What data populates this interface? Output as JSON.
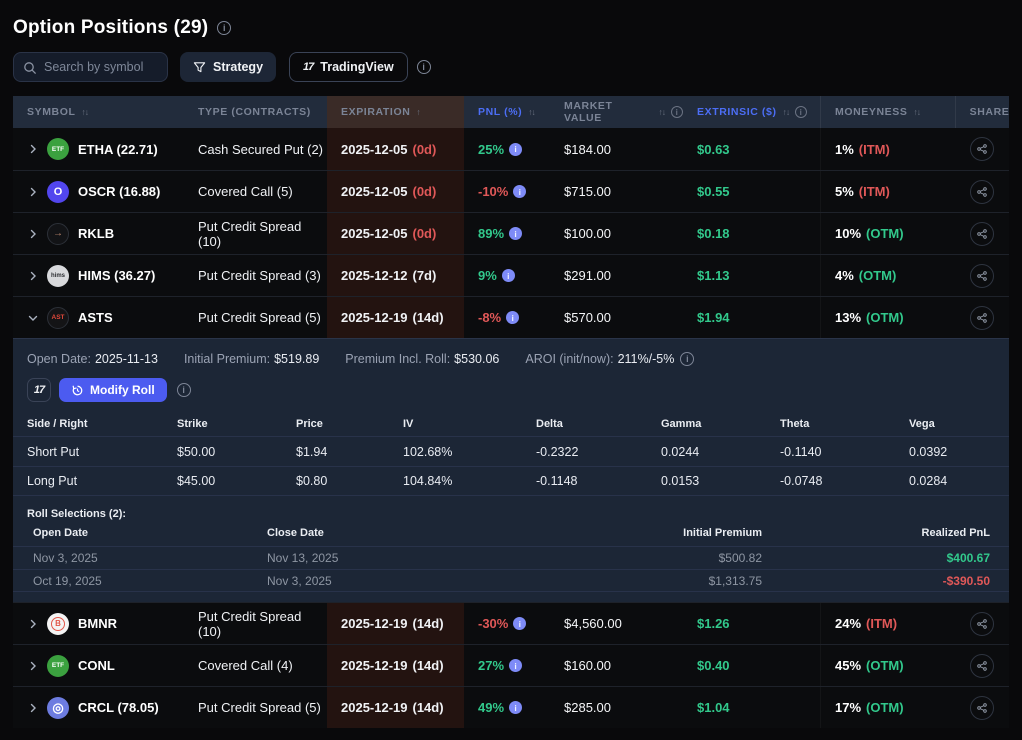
{
  "colors": {
    "green": "#32c98c",
    "red": "#e05858",
    "accent_blue": "#4c6ef5",
    "button_blue": "#4c5bf0",
    "badge_blue": "#7e8bf7",
    "panel_bg": "#1c2636",
    "header_bg": "#222c3c",
    "expiration_tint": "#231310"
  },
  "page": {
    "title": "Option Positions (29)",
    "search_placeholder": "Search by symbol",
    "strategy_button": "Strategy",
    "tradingview_button": "TradingView",
    "tradingview_logo": "17"
  },
  "table": {
    "columns": {
      "symbol": "SYMBOL",
      "type": "TYPE (CONTRACTS)",
      "expiration": "EXPIRATION",
      "pnl": "PNL (%)",
      "market_value": "MARKET VALUE",
      "extrinsic": "EXTRINSIC ($)",
      "moneyness": "MONEYNESS",
      "share": "SHARE"
    },
    "rows": [
      {
        "label": "ETHA (22.71)",
        "icon": {
          "text": "ETF",
          "bg": "#3ba13f",
          "fg": "#ffffff",
          "size": 6.5
        },
        "type": "Cash Secured Put (2)",
        "exp_date": "2025-12-05",
        "exp_days": "(0d)",
        "exp_urgent": true,
        "pnl": "25%",
        "pnl_dir": "pos",
        "pnl_info": false,
        "market_value": "$184.00",
        "extrinsic": "$0.63",
        "moneyness_pct": "1%",
        "moneyness_tag": "(ITM)",
        "moneyness_dir": "itm",
        "expanded": false
      },
      {
        "label": "OSCR (16.88)",
        "icon": {
          "text": "O",
          "bg": "#5246ee",
          "fg": "#ffffff",
          "size": 11
        },
        "type": "Covered Call (5)",
        "exp_date": "2025-12-05",
        "exp_days": "(0d)",
        "exp_urgent": true,
        "pnl": "-10%",
        "pnl_dir": "neg",
        "pnl_info": false,
        "market_value": "$715.00",
        "extrinsic": "$0.55",
        "moneyness_pct": "5%",
        "moneyness_tag": "(ITM)",
        "moneyness_dir": "itm",
        "expanded": false
      },
      {
        "label": "RKLB",
        "icon": {
          "text": "→",
          "bg": "#121316",
          "fg": "#c08a70",
          "size": 10,
          "border": "#2c3038"
        },
        "type": "Put Credit Spread (10)",
        "exp_date": "2025-12-05",
        "exp_days": "(0d)",
        "exp_urgent": true,
        "pnl": "89%",
        "pnl_dir": "pos",
        "pnl_info": false,
        "market_value": "$100.00",
        "extrinsic": "$0.18",
        "moneyness_pct": "10%",
        "moneyness_tag": "(OTM)",
        "moneyness_dir": "otm",
        "expanded": false
      },
      {
        "label": "HIMS (36.27)",
        "icon": {
          "text": "hims",
          "bg": "#d8d9dc",
          "fg": "#2a2c30",
          "size": 6
        },
        "type": "Put Credit Spread (3)",
        "exp_date": "2025-12-12",
        "exp_days": "(7d)",
        "exp_urgent": false,
        "pnl": "9%",
        "pnl_dir": "pos",
        "pnl_info": false,
        "market_value": "$291.00",
        "extrinsic": "$1.13",
        "moneyness_pct": "4%",
        "moneyness_tag": "(OTM)",
        "moneyness_dir": "otm",
        "expanded": false
      },
      {
        "label": "ASTS",
        "icon": {
          "text": "AST",
          "bg": "#141416",
          "fg": "#e0483a",
          "size": 6.5,
          "border": "#2c3038"
        },
        "type": "Put Credit Spread (5)",
        "exp_date": "2025-12-19",
        "exp_days": "(14d)",
        "exp_urgent": false,
        "pnl": "-8%",
        "pnl_dir": "neg",
        "pnl_info": true,
        "market_value": "$570.00",
        "extrinsic": "$1.94",
        "moneyness_pct": "13%",
        "moneyness_tag": "(OTM)",
        "moneyness_dir": "otm",
        "expanded": true
      },
      {
        "label": "BMNR",
        "icon": {
          "text": "B",
          "bg": "#f4f4f4",
          "fg": "#e2574a",
          "ring": true
        },
        "type": "Put Credit Spread (10)",
        "exp_date": "2025-12-19",
        "exp_days": "(14d)",
        "exp_urgent": false,
        "pnl": "-30%",
        "pnl_dir": "neg",
        "pnl_info": true,
        "market_value": "$4,560.00",
        "extrinsic": "$1.26",
        "moneyness_pct": "24%",
        "moneyness_tag": "(ITM)",
        "moneyness_dir": "itm",
        "expanded": false
      },
      {
        "label": "CONL",
        "icon": {
          "text": "ETF",
          "bg": "#3ba13f",
          "fg": "#ffffff",
          "size": 6.5
        },
        "type": "Covered Call (4)",
        "exp_date": "2025-12-19",
        "exp_days": "(14d)",
        "exp_urgent": false,
        "pnl": "27%",
        "pnl_dir": "pos",
        "pnl_info": false,
        "market_value": "$160.00",
        "extrinsic": "$0.40",
        "moneyness_pct": "45%",
        "moneyness_tag": "(OTM)",
        "moneyness_dir": "otm",
        "expanded": false
      },
      {
        "label": "CRCL (78.05)",
        "icon": {
          "text": "◎",
          "bg": "#6d7ce0",
          "fg": "#ffffff",
          "size": 13
        },
        "type": "Put Credit Spread (5)",
        "exp_date": "2025-12-19",
        "exp_days": "(14d)",
        "exp_urgent": false,
        "pnl": "49%",
        "pnl_dir": "pos",
        "pnl_info": false,
        "market_value": "$285.00",
        "extrinsic": "$1.04",
        "moneyness_pct": "17%",
        "moneyness_tag": "(OTM)",
        "moneyness_dir": "otm",
        "expanded": false
      }
    ]
  },
  "expanded": {
    "open_date_label": "Open Date:",
    "open_date": "2025-11-13",
    "initial_premium_label": "Initial Premium:",
    "initial_premium": "$519.89",
    "premium_incl_roll_label": "Premium Incl. Roll:",
    "premium_incl_roll": "$530.06",
    "aroi_label": "AROI (init/now):",
    "aroi": "211%/-5%",
    "tradingview_logo": "17",
    "modify_roll_label": "Modify Roll",
    "legs_columns": [
      "Side / Right",
      "Strike",
      "Price",
      "IV",
      "Delta",
      "Gamma",
      "Theta",
      "Vega"
    ],
    "legs": [
      [
        "Short Put",
        "$50.00",
        "$1.94",
        "102.68%",
        "-0.2322",
        "0.0244",
        "-0.1140",
        "0.0392"
      ],
      [
        "Long Put",
        "$45.00",
        "$0.80",
        "104.84%",
        "-0.1148",
        "0.0153",
        "-0.0748",
        "0.0284"
      ]
    ],
    "roll_title": "Roll Selections (2):",
    "roll_columns": [
      "Open Date",
      "Close Date",
      "Initial Premium",
      "Realized PnL"
    ],
    "rolls": [
      {
        "open": "Nov 3, 2025",
        "close": "Nov 13, 2025",
        "premium": "$500.82",
        "pnl": "$400.67",
        "pnl_positive": true
      },
      {
        "open": "Oct 19, 2025",
        "close": "Nov 3, 2025",
        "premium": "$1,313.75",
        "pnl": "-$390.50",
        "pnl_positive": false
      }
    ]
  }
}
